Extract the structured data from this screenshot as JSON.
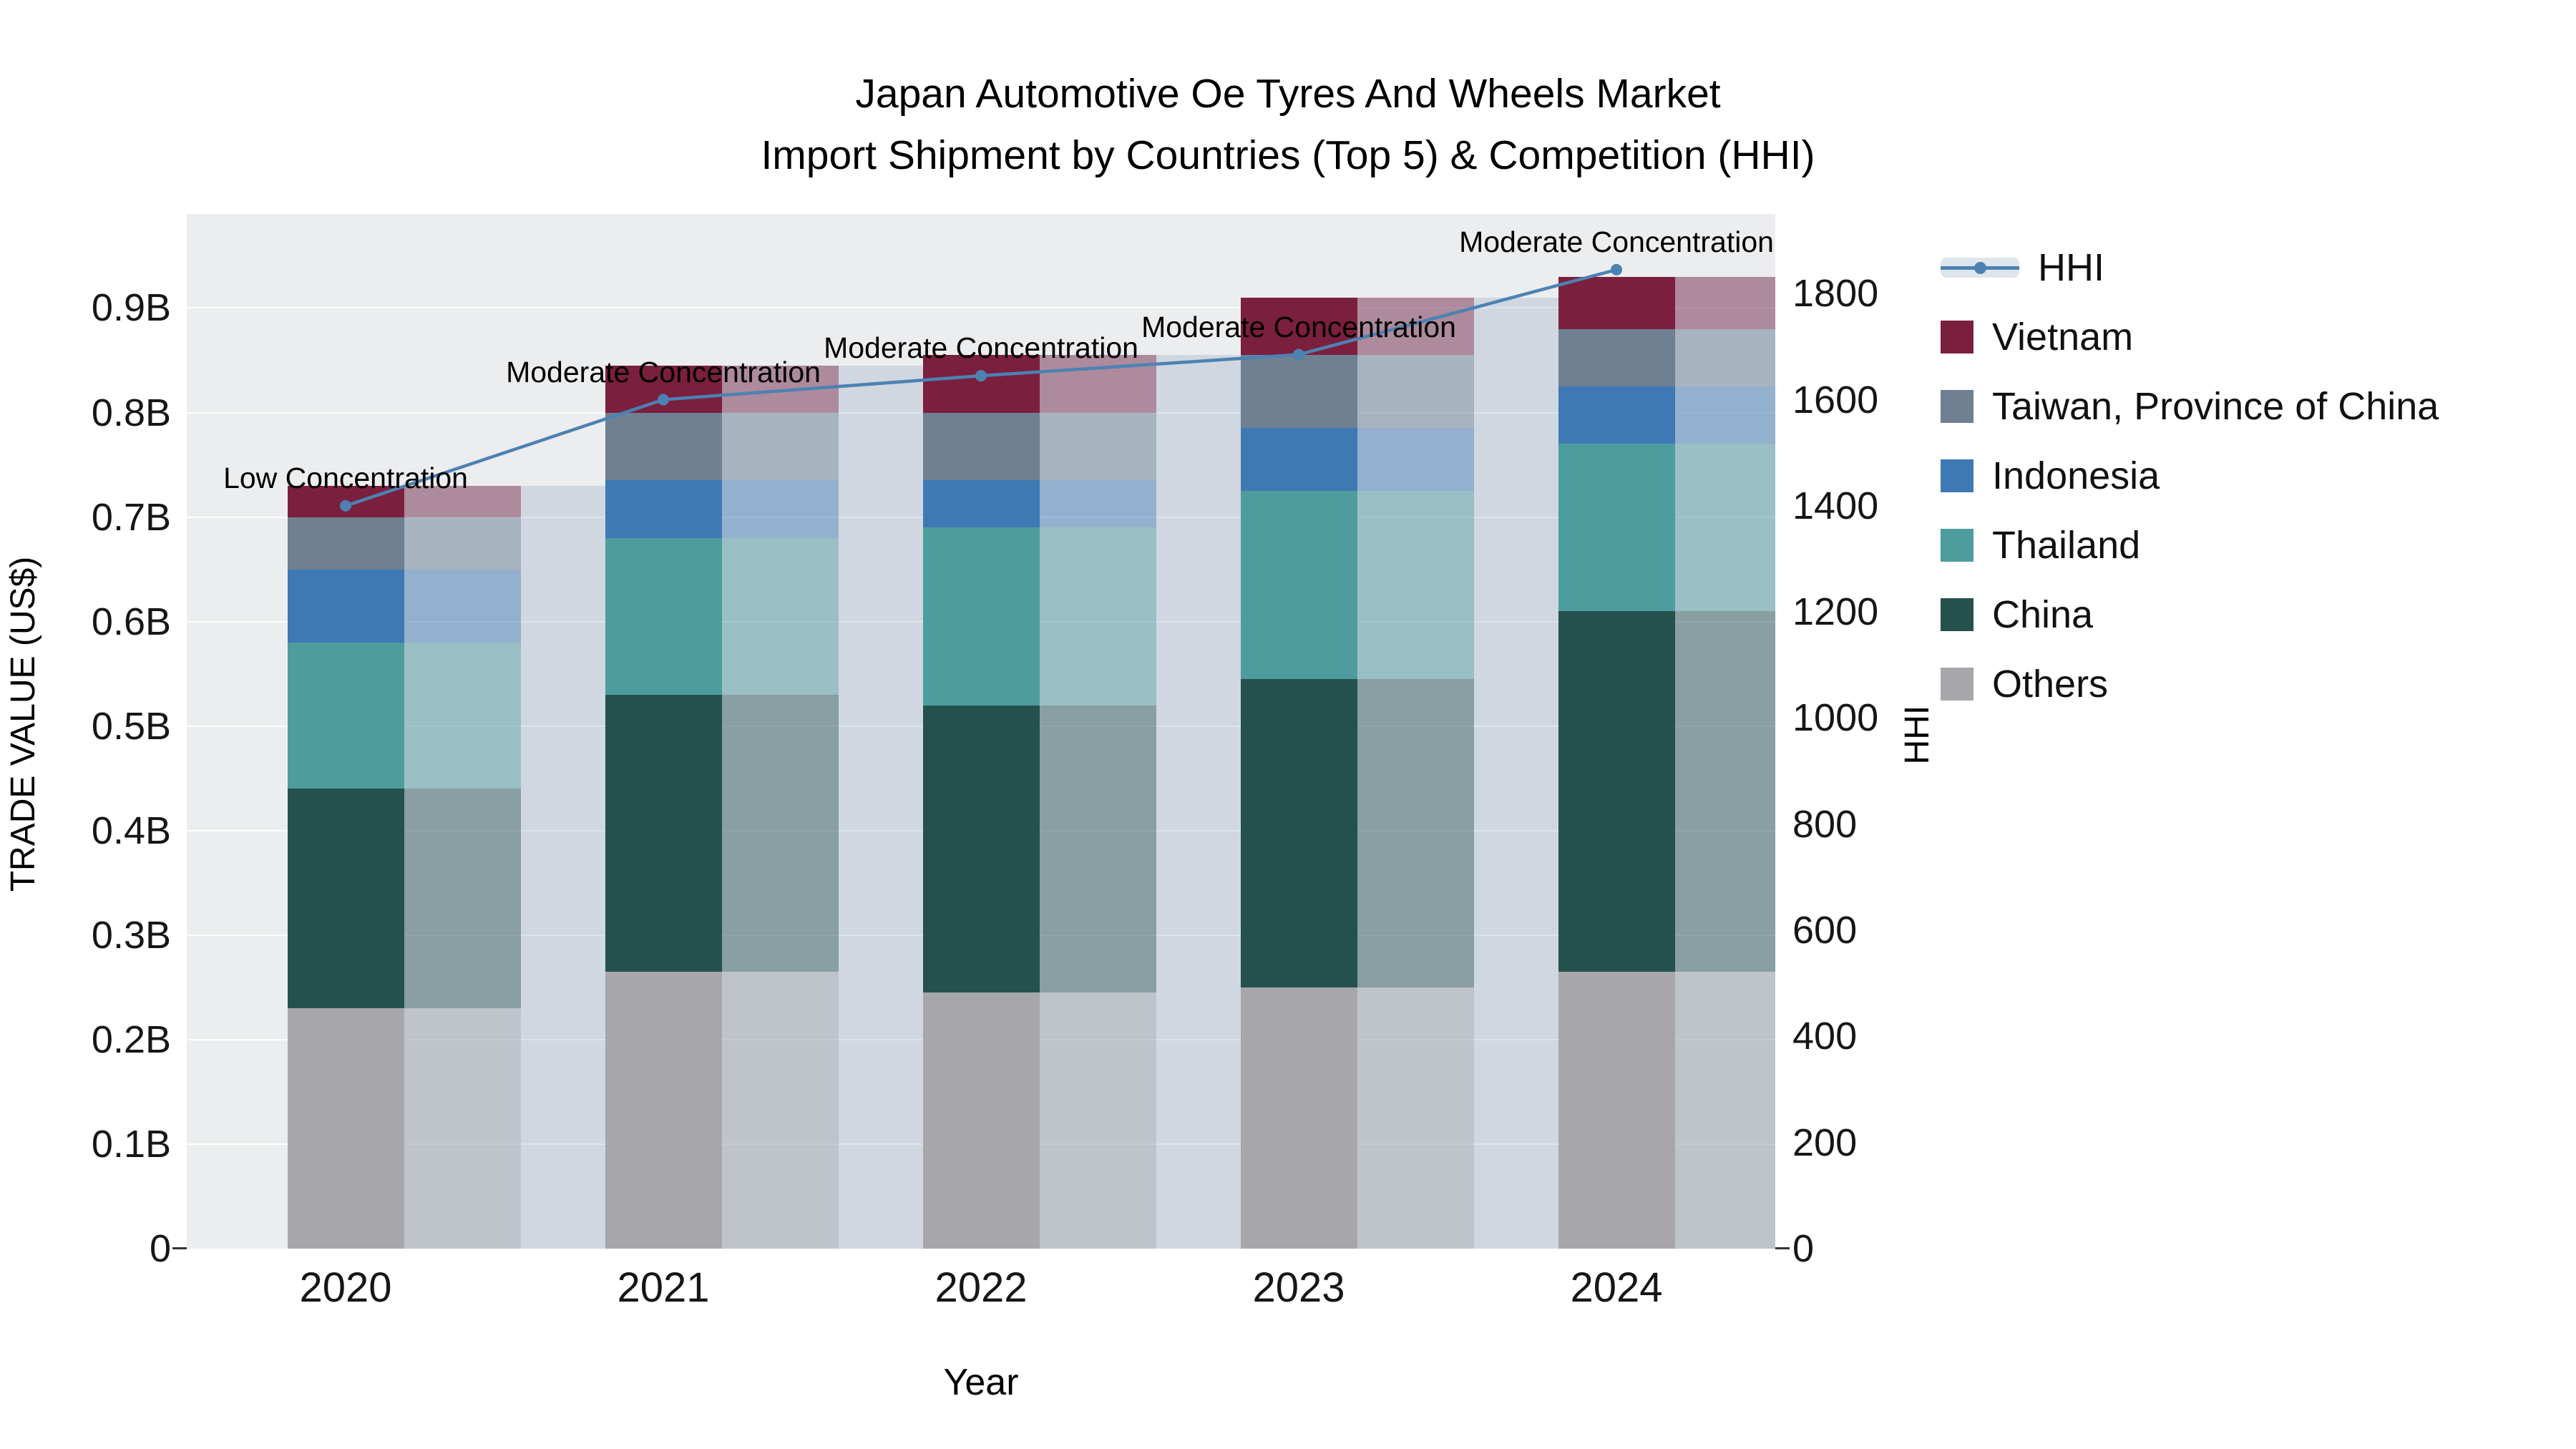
{
  "title": {
    "line1": "Japan Automotive Oe Tyres And Wheels Market",
    "line2": "Import Shipment by Countries (Top 5) & Competition (HHI)"
  },
  "axes": {
    "y_left": {
      "title": "TRADE VALUE (US$)",
      "ticks": [
        {
          "value": 0,
          "label": "0"
        },
        {
          "value": 0.1,
          "label": "0.1B"
        },
        {
          "value": 0.2,
          "label": "0.2B"
        },
        {
          "value": 0.3,
          "label": "0.3B"
        },
        {
          "value": 0.4,
          "label": "0.4B"
        },
        {
          "value": 0.5,
          "label": "0.5B"
        },
        {
          "value": 0.6,
          "label": "0.6B"
        },
        {
          "value": 0.7,
          "label": "0.7B"
        },
        {
          "value": 0.8,
          "label": "0.8B"
        },
        {
          "value": 0.9,
          "label": "0.9B"
        }
      ]
    },
    "y_right": {
      "title": "HHI",
      "ticks": [
        {
          "value": 0,
          "label": "0"
        },
        {
          "value": 200,
          "label": "200"
        },
        {
          "value": 400,
          "label": "400"
        },
        {
          "value": 600,
          "label": "600"
        },
        {
          "value": 800,
          "label": "800"
        },
        {
          "value": 1000,
          "label": "1000"
        },
        {
          "value": 1200,
          "label": "1200"
        },
        {
          "value": 1400,
          "label": "1400"
        },
        {
          "value": 1600,
          "label": "1600"
        },
        {
          "value": 1800,
          "label": "1800"
        }
      ]
    },
    "x": {
      "title": "Year",
      "categories": [
        "2020",
        "2021",
        "2022",
        "2023",
        "2024"
      ]
    }
  },
  "legend": {
    "items": [
      {
        "label": "HHI",
        "type": "line",
        "color": "#4C82B2"
      },
      {
        "label": "Vietnam",
        "type": "square",
        "color": "#7B1F3E"
      },
      {
        "label": "Taiwan, Province of China",
        "type": "square",
        "color": "#6E8092"
      },
      {
        "label": "Indonesia",
        "type": "square",
        "color": "#3E79B4"
      },
      {
        "label": "Thailand",
        "type": "square",
        "color": "#4E9D9E"
      },
      {
        "label": "China",
        "type": "square",
        "color": "#25514C"
      },
      {
        "label": "Others",
        "type": "square",
        "color": "#A7A7AB"
      }
    ]
  },
  "chart_data": {
    "type": "bar",
    "subtype": "stacked-bars-with-hhi-line",
    "title": "Japan Automotive Oe Tyres And Wheels Market — Import Shipment by Countries (Top 5) & Competition (HHI)",
    "xlabel": "Year",
    "ylabel_left": "TRADE VALUE (US$)",
    "ylabel_right": "HHI",
    "categories": [
      "2020",
      "2021",
      "2022",
      "2023",
      "2024"
    ],
    "series": [
      {
        "name": "Others",
        "color": "#A7A7AB",
        "values": [
          0.23,
          0.265,
          0.245,
          0.25,
          0.265
        ]
      },
      {
        "name": "China",
        "color": "#25514C",
        "values": [
          0.21,
          0.265,
          0.275,
          0.295,
          0.345
        ]
      },
      {
        "name": "Thailand",
        "color": "#4E9D9E",
        "values": [
          0.14,
          0.15,
          0.17,
          0.18,
          0.16
        ]
      },
      {
        "name": "Indonesia",
        "color": "#3E79B4",
        "values": [
          0.07,
          0.055,
          0.045,
          0.06,
          0.055
        ]
      },
      {
        "name": "Taiwan, Province of China",
        "color": "#6E8092",
        "values": [
          0.05,
          0.065,
          0.065,
          0.07,
          0.055
        ]
      },
      {
        "name": "Vietnam",
        "color": "#7B1F3E",
        "values": [
          0.03,
          0.045,
          0.055,
          0.055,
          0.05
        ]
      }
    ],
    "totals": [
      0.73,
      0.845,
      0.855,
      0.91,
      0.93
    ],
    "line": {
      "name": "HHI",
      "axis": "right",
      "color": "#4C82B2",
      "values": [
        1400,
        1600,
        1645,
        1685,
        1845
      ]
    },
    "annotations": [
      "Low Concentration",
      "Moderate Concentration",
      "Moderate Concentration",
      "Moderate Concentration",
      "Moderate Concentration"
    ],
    "ylim_left": [
      0,
      0.99
    ],
    "ylim_right": [
      0,
      1950
    ],
    "grid": true,
    "legend_position": "right",
    "style": {
      "plot_bg": "#ECEDEF",
      "grid_color": "rgba(255,255,255,0.9)",
      "backdrop_color": "rgba(125,150,185,0.25)",
      "ghost_opacity": 0.42
    }
  }
}
